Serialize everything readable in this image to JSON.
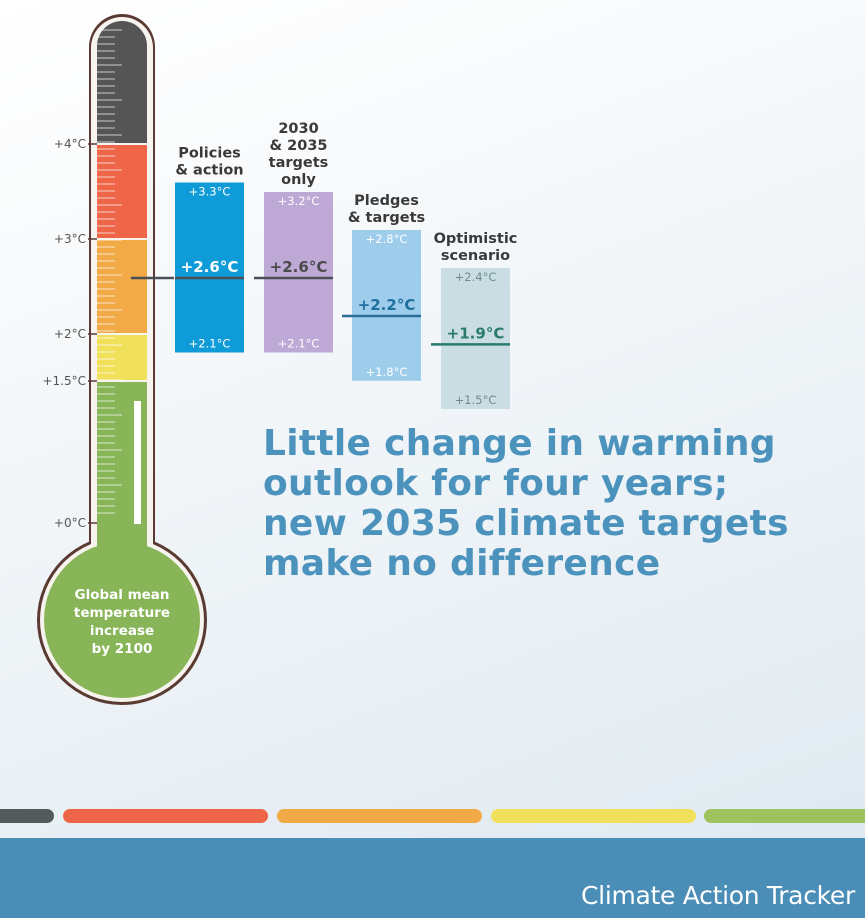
{
  "chart_data": {
    "type": "bar",
    "title": "Little change in warming outlook for four years; new 2035 climate targets make no difference",
    "thermometer": {
      "label": "Global mean temperature increase by 2100",
      "ticks": [
        "+4°C",
        "+3°C",
        "+2°C",
        "+1.5°C",
        "+0°C"
      ],
      "tick_values": [
        4,
        3,
        2,
        1.5,
        0
      ],
      "fill_value": 2.6
    },
    "scenarios": [
      {
        "name": "Policies & action",
        "title_lines": [
          "Policies",
          "& action"
        ],
        "low": 2.1,
        "mid": 2.6,
        "high": 3.3,
        "low_label": "+2.1°C",
        "mid_label": "+2.6°C",
        "high_label": "+3.3°C",
        "color": "#0f9bd7",
        "text_color": "#ffffff"
      },
      {
        "name": "2030 & 2035 targets only",
        "title_lines": [
          "2030",
          "& 2035",
          "targets",
          "only"
        ],
        "low": 2.1,
        "mid": 2.6,
        "high": 3.2,
        "low_label": "+2.1°C",
        "mid_label": "+2.6°C",
        "high_label": "+3.2°C",
        "color": "#bda8d6",
        "text_color": "#ffffff",
        "mid_text_color": "#4a4a4a"
      },
      {
        "name": "Pledges & targets",
        "title_lines": [
          "Pledges",
          "& targets"
        ],
        "low": 1.8,
        "mid": 2.2,
        "high": 2.8,
        "low_label": "+1.8°C",
        "mid_label": "+2.2°C",
        "high_label": "+2.8°C",
        "color": "#9ecdec",
        "text_color": "#ffffff",
        "mid_text_color": "#1f6f9f"
      },
      {
        "name": "Optimistic scenario",
        "title_lines": [
          "Optimistic",
          "scenario"
        ],
        "low": 1.5,
        "mid": 1.9,
        "high": 2.4,
        "low_label": "+1.5°C",
        "mid_label": "+1.9°C",
        "high_label": "+2.4°C",
        "color": "#c9dde3",
        "text_color": "#6f8a92",
        "mid_text_color": "#2b7a6e"
      }
    ],
    "colors": {
      "grey": "#555555",
      "red": "#ef6548",
      "orange": "#f1aa46",
      "yellow": "#f1e05a",
      "green": "#87b557",
      "outline": "#5a3a32"
    }
  },
  "headline_lines": [
    "Little change in warming",
    "outlook for four years;",
    "new 2035 climate targets",
    "make no difference"
  ],
  "footer": {
    "brand": "Climate Action Tracker"
  },
  "stripes": [
    "#555a5a",
    "#ef6548",
    "#f1aa46",
    "#f1e05a",
    "#9ec35c"
  ]
}
